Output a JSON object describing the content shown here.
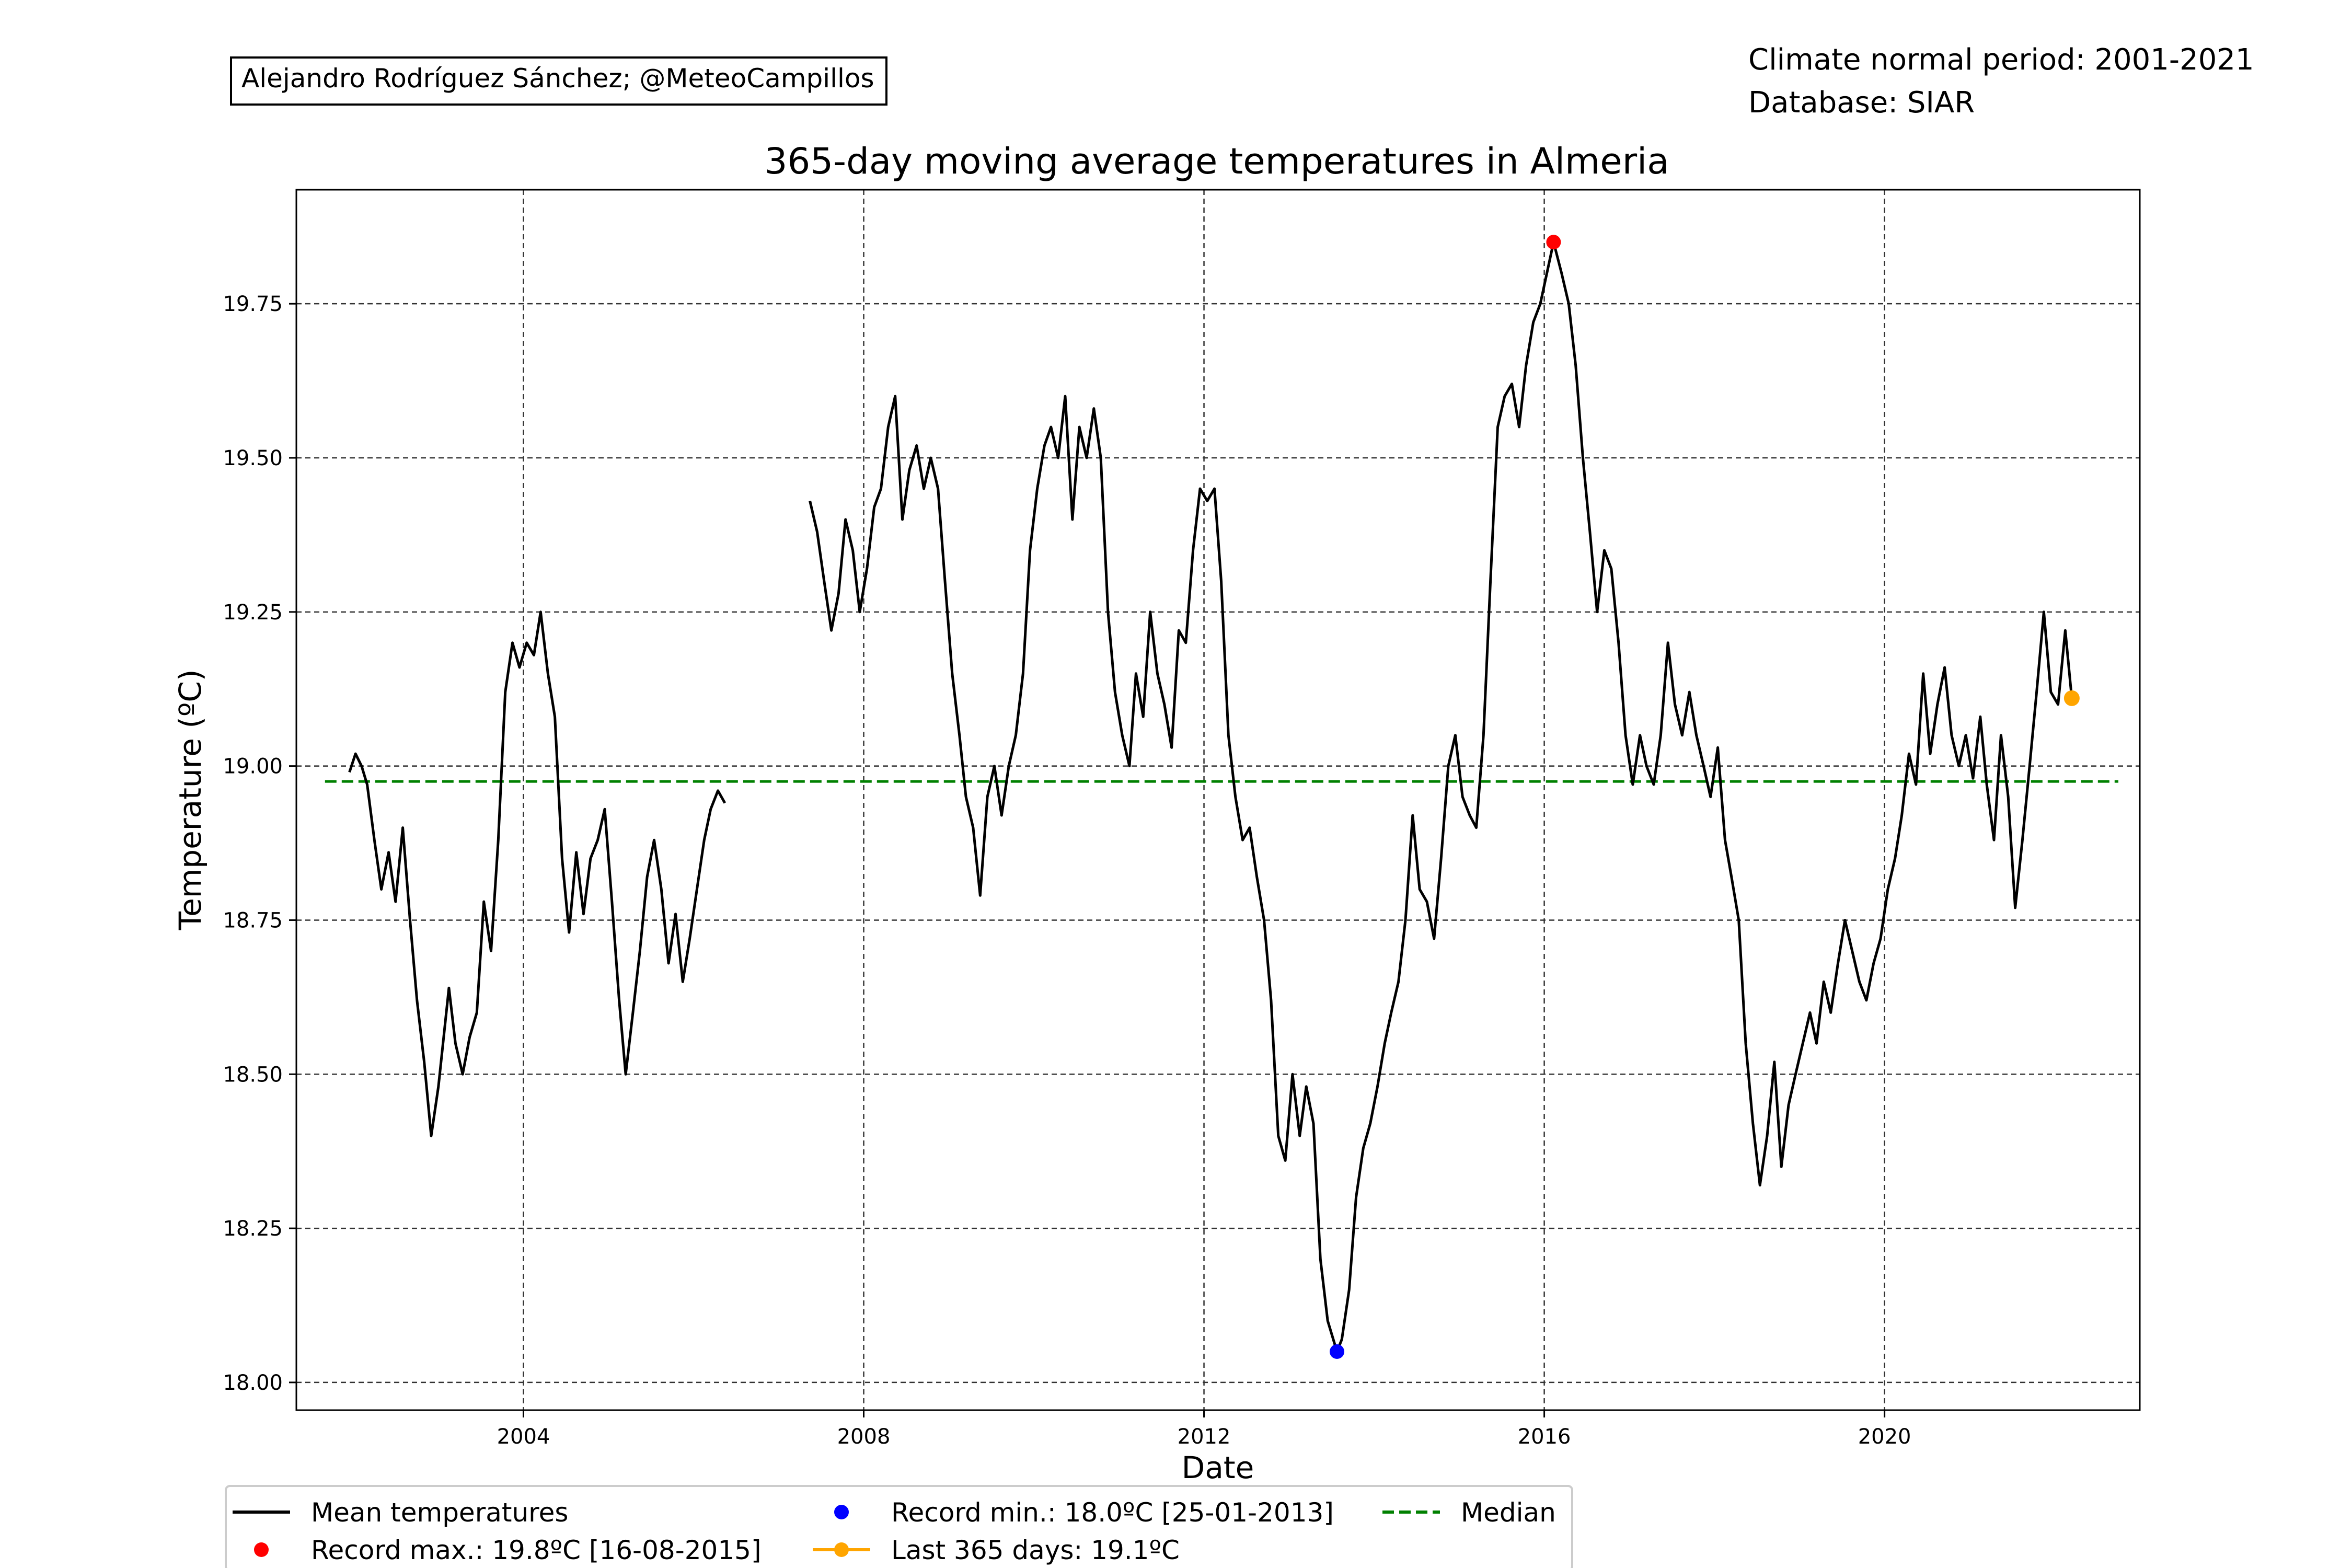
{
  "credit": "Alejandro Rodríguez Sánchez; @MeteoCampillos",
  "info": {
    "period": "Climate normal period: 2001-2021",
    "database": "Database: SIAR"
  },
  "chart_data": {
    "type": "line",
    "title": "365-day moving average temperatures in Almeria",
    "xlabel": "Date",
    "ylabel": "Temperature (ºC)",
    "xlim": [
      "2001-05-01",
      "2023-01-01"
    ],
    "ylim": [
      17.955,
      19.935
    ],
    "x_ticks": [
      "2004",
      "2008",
      "2012",
      "2016",
      "2020"
    ],
    "y_ticks": [
      "18.00",
      "18.25",
      "18.50",
      "18.75",
      "19.00",
      "19.25",
      "19.50",
      "19.75"
    ],
    "grid": true,
    "median": 18.975,
    "series": [
      {
        "name": "Mean temperatures",
        "color": "#000000",
        "points": [
          [
            "2001-12-15",
            18.99
          ],
          [
            "2002-01-10",
            19.02
          ],
          [
            "2002-02-05",
            19.0
          ],
          [
            "2002-03-01",
            18.97
          ],
          [
            "2002-04-01",
            18.88
          ],
          [
            "2002-05-01",
            18.8
          ],
          [
            "2002-06-01",
            18.86
          ],
          [
            "2002-07-01",
            18.78
          ],
          [
            "2002-08-01",
            18.9
          ],
          [
            "2002-09-01",
            18.75
          ],
          [
            "2002-10-01",
            18.62
          ],
          [
            "2002-11-01",
            18.52
          ],
          [
            "2002-12-01",
            18.4
          ],
          [
            "2003-01-01",
            18.48
          ],
          [
            "2003-02-15",
            18.64
          ],
          [
            "2003-03-15",
            18.55
          ],
          [
            "2003-04-15",
            18.5
          ],
          [
            "2003-05-15",
            18.56
          ],
          [
            "2003-06-15",
            18.6
          ],
          [
            "2003-07-15",
            18.78
          ],
          [
            "2003-08-15",
            18.7
          ],
          [
            "2003-09-15",
            18.88
          ],
          [
            "2003-10-15",
            19.12
          ],
          [
            "2003-11-15",
            19.2
          ],
          [
            "2003-12-15",
            19.16
          ],
          [
            "2004-01-15",
            19.2
          ],
          [
            "2004-02-15",
            19.18
          ],
          [
            "2004-03-15",
            19.25
          ],
          [
            "2004-04-15",
            19.15
          ],
          [
            "2004-05-15",
            19.08
          ],
          [
            "2004-06-15",
            18.85
          ],
          [
            "2004-07-15",
            18.73
          ],
          [
            "2004-08-15",
            18.86
          ],
          [
            "2004-09-15",
            18.76
          ],
          [
            "2004-10-15",
            18.85
          ],
          [
            "2004-11-15",
            18.88
          ],
          [
            "2004-12-15",
            18.93
          ],
          [
            "2005-01-15",
            18.78
          ],
          [
            "2005-02-15",
            18.62
          ],
          [
            "2005-03-15",
            18.5
          ],
          [
            "2005-04-15",
            18.6
          ],
          [
            "2005-05-15",
            18.7
          ],
          [
            "2005-06-15",
            18.82
          ],
          [
            "2005-07-15",
            18.88
          ],
          [
            "2005-08-15",
            18.8
          ],
          [
            "2005-09-15",
            18.68
          ],
          [
            "2005-10-15",
            18.76
          ],
          [
            "2005-11-15",
            18.65
          ],
          [
            "2005-12-15",
            18.72
          ],
          [
            "2006-01-15",
            18.8
          ],
          [
            "2006-02-15",
            18.88
          ],
          [
            "2006-03-15",
            18.93
          ],
          [
            "2006-04-15",
            18.96
          ],
          [
            "2006-05-15",
            18.94
          ],
          [
            "2007-05-15",
            19.43
          ],
          [
            "2007-06-15",
            19.38
          ],
          [
            "2007-07-15",
            19.3
          ],
          [
            "2007-08-15",
            19.22
          ],
          [
            "2007-09-15",
            19.28
          ],
          [
            "2007-10-15",
            19.4
          ],
          [
            "2007-11-15",
            19.35
          ],
          [
            "2007-12-15",
            19.25
          ],
          [
            "2008-01-15",
            19.32
          ],
          [
            "2008-02-15",
            19.42
          ],
          [
            "2008-03-15",
            19.45
          ],
          [
            "2008-04-15",
            19.55
          ],
          [
            "2008-05-15",
            19.6
          ],
          [
            "2008-06-15",
            19.4
          ],
          [
            "2008-07-15",
            19.48
          ],
          [
            "2008-08-15",
            19.52
          ],
          [
            "2008-09-15",
            19.45
          ],
          [
            "2008-10-15",
            19.5
          ],
          [
            "2008-11-15",
            19.45
          ],
          [
            "2008-12-15",
            19.3
          ],
          [
            "2009-01-15",
            19.15
          ],
          [
            "2009-02-15",
            19.05
          ],
          [
            "2009-03-15",
            18.95
          ],
          [
            "2009-04-15",
            18.9
          ],
          [
            "2009-05-15",
            18.79
          ],
          [
            "2009-06-15",
            18.95
          ],
          [
            "2009-07-15",
            19.0
          ],
          [
            "2009-08-15",
            18.92
          ],
          [
            "2009-09-15",
            19.0
          ],
          [
            "2009-10-15",
            19.05
          ],
          [
            "2009-11-15",
            19.15
          ],
          [
            "2009-12-15",
            19.35
          ],
          [
            "2010-01-15",
            19.45
          ],
          [
            "2010-02-15",
            19.52
          ],
          [
            "2010-03-15",
            19.55
          ],
          [
            "2010-04-15",
            19.5
          ],
          [
            "2010-05-15",
            19.6
          ],
          [
            "2010-06-15",
            19.4
          ],
          [
            "2010-07-15",
            19.55
          ],
          [
            "2010-08-15",
            19.5
          ],
          [
            "2010-09-15",
            19.58
          ],
          [
            "2010-10-15",
            19.5
          ],
          [
            "2010-11-15",
            19.25
          ],
          [
            "2010-12-15",
            19.12
          ],
          [
            "2011-01-15",
            19.05
          ],
          [
            "2011-02-15",
            19.0
          ],
          [
            "2011-03-15",
            19.15
          ],
          [
            "2011-04-15",
            19.08
          ],
          [
            "2011-05-15",
            19.25
          ],
          [
            "2011-06-15",
            19.15
          ],
          [
            "2011-07-15",
            19.1
          ],
          [
            "2011-08-15",
            19.03
          ],
          [
            "2011-09-15",
            19.22
          ],
          [
            "2011-10-15",
            19.2
          ],
          [
            "2011-11-15",
            19.35
          ],
          [
            "2011-12-15",
            19.45
          ],
          [
            "2012-01-15",
            19.43
          ],
          [
            "2012-02-15",
            19.45
          ],
          [
            "2012-03-15",
            19.3
          ],
          [
            "2012-04-15",
            19.05
          ],
          [
            "2012-05-15",
            18.95
          ],
          [
            "2012-06-15",
            18.88
          ],
          [
            "2012-07-15",
            18.9
          ],
          [
            "2012-08-15",
            18.82
          ],
          [
            "2012-09-15",
            18.75
          ],
          [
            "2012-10-15",
            18.62
          ],
          [
            "2012-11-15",
            18.4
          ],
          [
            "2012-12-15",
            18.36
          ],
          [
            "2013-01-15",
            18.5
          ],
          [
            "2013-02-15",
            18.4
          ],
          [
            "2013-03-15",
            18.48
          ],
          [
            "2013-04-15",
            18.42
          ],
          [
            "2013-05-15",
            18.2
          ],
          [
            "2013-06-15",
            18.1
          ],
          [
            "2013-07-25",
            18.05
          ],
          [
            "2013-08-15",
            18.07
          ],
          [
            "2013-09-15",
            18.15
          ],
          [
            "2013-10-15",
            18.3
          ],
          [
            "2013-11-15",
            18.38
          ],
          [
            "2013-12-15",
            18.42
          ],
          [
            "2014-01-15",
            18.48
          ],
          [
            "2014-02-15",
            18.55
          ],
          [
            "2014-03-15",
            18.6
          ],
          [
            "2014-04-15",
            18.65
          ],
          [
            "2014-05-15",
            18.75
          ],
          [
            "2014-06-15",
            18.92
          ],
          [
            "2014-07-15",
            18.8
          ],
          [
            "2014-08-15",
            18.78
          ],
          [
            "2014-09-15",
            18.72
          ],
          [
            "2014-10-15",
            18.85
          ],
          [
            "2014-11-15",
            19.0
          ],
          [
            "2014-12-15",
            19.05
          ],
          [
            "2015-01-15",
            18.95
          ],
          [
            "2015-02-15",
            18.92
          ],
          [
            "2015-03-15",
            18.9
          ],
          [
            "2015-04-15",
            19.05
          ],
          [
            "2015-05-15",
            19.3
          ],
          [
            "2015-06-15",
            19.55
          ],
          [
            "2015-07-15",
            19.6
          ],
          [
            "2015-08-15",
            19.62
          ],
          [
            "2015-09-15",
            19.55
          ],
          [
            "2015-10-15",
            19.65
          ],
          [
            "2015-11-15",
            19.72
          ],
          [
            "2015-12-15",
            19.75
          ],
          [
            "2016-02-10",
            19.85
          ],
          [
            "2016-03-15",
            19.8
          ],
          [
            "2016-04-15",
            19.75
          ],
          [
            "2016-05-15",
            19.65
          ],
          [
            "2016-06-15",
            19.5
          ],
          [
            "2016-07-15",
            19.38
          ],
          [
            "2016-08-15",
            19.25
          ],
          [
            "2016-09-15",
            19.35
          ],
          [
            "2016-10-15",
            19.32
          ],
          [
            "2016-11-15",
            19.2
          ],
          [
            "2016-12-15",
            19.05
          ],
          [
            "2017-01-15",
            18.97
          ],
          [
            "2017-02-15",
            19.05
          ],
          [
            "2017-03-15",
            19.0
          ],
          [
            "2017-04-15",
            18.97
          ],
          [
            "2017-05-15",
            19.05
          ],
          [
            "2017-06-15",
            19.2
          ],
          [
            "2017-07-15",
            19.1
          ],
          [
            "2017-08-15",
            19.05
          ],
          [
            "2017-09-15",
            19.12
          ],
          [
            "2017-10-15",
            19.05
          ],
          [
            "2017-11-15",
            19.0
          ],
          [
            "2017-12-15",
            18.95
          ],
          [
            "2018-01-15",
            19.03
          ],
          [
            "2018-02-15",
            18.88
          ],
          [
            "2018-03-15",
            18.82
          ],
          [
            "2018-04-15",
            18.75
          ],
          [
            "2018-05-15",
            18.55
          ],
          [
            "2018-06-15",
            18.42
          ],
          [
            "2018-07-15",
            18.32
          ],
          [
            "2018-08-15",
            18.4
          ],
          [
            "2018-09-15",
            18.52
          ],
          [
            "2018-10-15",
            18.35
          ],
          [
            "2018-11-15",
            18.45
          ],
          [
            "2018-12-15",
            18.5
          ],
          [
            "2019-01-15",
            18.55
          ],
          [
            "2019-02-15",
            18.6
          ],
          [
            "2019-03-15",
            18.55
          ],
          [
            "2019-04-15",
            18.65
          ],
          [
            "2019-05-15",
            18.6
          ],
          [
            "2019-06-15",
            18.68
          ],
          [
            "2019-07-15",
            18.75
          ],
          [
            "2019-08-15",
            18.7
          ],
          [
            "2019-09-15",
            18.65
          ],
          [
            "2019-10-15",
            18.62
          ],
          [
            "2019-11-15",
            18.68
          ],
          [
            "2019-12-15",
            18.72
          ],
          [
            "2020-01-15",
            18.8
          ],
          [
            "2020-02-15",
            18.85
          ],
          [
            "2020-03-15",
            18.92
          ],
          [
            "2020-04-15",
            19.02
          ],
          [
            "2020-05-15",
            18.97
          ],
          [
            "2020-06-15",
            19.15
          ],
          [
            "2020-07-15",
            19.02
          ],
          [
            "2020-08-15",
            19.1
          ],
          [
            "2020-09-15",
            19.16
          ],
          [
            "2020-10-15",
            19.05
          ],
          [
            "2020-11-15",
            19.0
          ],
          [
            "2020-12-15",
            19.05
          ],
          [
            "2021-01-15",
            18.98
          ],
          [
            "2021-02-15",
            19.08
          ],
          [
            "2021-03-15",
            18.97
          ],
          [
            "2021-04-15",
            18.88
          ],
          [
            "2021-05-15",
            19.05
          ],
          [
            "2021-06-15",
            18.95
          ],
          [
            "2021-07-15",
            18.77
          ],
          [
            "2021-08-15",
            18.88
          ],
          [
            "2021-09-15",
            19.0
          ],
          [
            "2021-10-15",
            19.12
          ],
          [
            "2021-11-15",
            19.25
          ],
          [
            "2021-12-15",
            19.12
          ],
          [
            "2022-01-15",
            19.1
          ],
          [
            "2022-02-15",
            19.22
          ],
          [
            "2022-03-15",
            19.11
          ]
        ]
      }
    ],
    "markers": {
      "record_max": {
        "x": "2016-02-10",
        "y": 19.85,
        "color": "#ff0000"
      },
      "record_min": {
        "x": "2013-07-25",
        "y": 18.05,
        "color": "#0000ff"
      },
      "last": {
        "x": "2022-03-15",
        "y": 19.11,
        "color": "#ffa500"
      }
    },
    "median_color": "#008000",
    "legend_position": "bottom",
    "legend": [
      {
        "label": "Mean temperatures",
        "kind": "line",
        "color": "#000000"
      },
      {
        "label": "Record max.: 19.8ºC [16-08-2015]",
        "kind": "dot",
        "color": "#ff0000"
      },
      {
        "label": "Record min.: 18.0ºC [25-01-2013]",
        "kind": "dot",
        "color": "#0000ff"
      },
      {
        "label": "Last 365 days: 19.1ºC",
        "kind": "line-dot",
        "color": "#ffa500"
      },
      {
        "label": "Median",
        "kind": "dashed",
        "color": "#008000"
      }
    ]
  }
}
